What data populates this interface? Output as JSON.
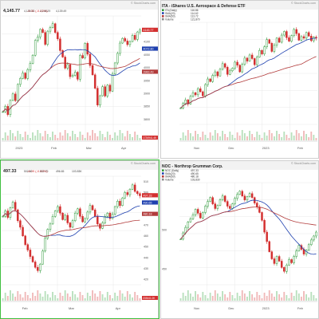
{
  "watermark": "© StockCharts.com",
  "colors": {
    "up": "#2e9a3a",
    "down": "#d32f2f",
    "ma_blue": "#1e40af",
    "ma_red": "#b23b3b",
    "accent_red": "#d32f2f",
    "grid": "#e8e8e8",
    "header_bg": "#f2f2f2",
    "selected_border": "#3fbf3f",
    "event_purple": "#a678c9"
  },
  "chart_data": [
    {
      "type": "candlestick",
      "panel": "top-left",
      "exchange": "",
      "symbol": "",
      "name": "",
      "last": "4,145.77",
      "change": "-9.30 (-0.22%)",
      "header_values": [
        "4,139.33",
        "4,148.29",
        "4,139.49"
      ],
      "legend": [],
      "price_tags": [
        {
          "text": "4145.77",
          "color": "#d32f2f",
          "value": 4145.77
        },
        {
          "text": "4072.80",
          "color": "#1e40af",
          "value": 4072.8
        },
        {
          "text": "3983.49",
          "color": "#b23b3b",
          "value": 3983.49
        }
      ],
      "y_ticks": [
        "4100",
        "4050",
        "4000",
        "3950",
        "3900",
        "3850",
        "3800"
      ],
      "volume_tag": "1726941.4K",
      "x_labels": [
        "2023",
        "Feb",
        "Mar",
        "Apr"
      ],
      "ylim": [
        3780,
        4200
      ],
      "series": {
        "close": [
          3829,
          3850,
          3818,
          3873,
          3898,
          3872,
          3935,
          3958,
          3979,
          3958,
          3992,
          4016,
          4048,
          4105,
          4119,
          4148,
          4136,
          4090,
          4141,
          4155,
          4170,
          4136,
          4111,
          4066,
          4041,
          3998,
          4012,
          3965,
          3970,
          3982,
          3955,
          4047,
          4037,
          4094,
          4052,
          4008,
          3972,
          3920,
          3855,
          3891,
          3926,
          3890,
          3932,
          3909,
          3975,
          4018,
          4055,
          4095,
          4113,
          4103,
          4089,
          4101,
          4125,
          4109,
          4138,
          4146
        ]
      }
    },
    {
      "type": "candlestick",
      "panel": "top-right",
      "exchange": "",
      "symbol": "ITA",
      "name": "iShares U.S. Aerospace & Defense ETF",
      "last": "",
      "change": "",
      "header_values": [],
      "legend": [
        {
          "label": "ITA (Daily)",
          "value": "116.86",
          "color": "#2e9a3a"
        },
        {
          "label": "SMA(20)",
          "value": "114.62",
          "color": "#1e40af"
        },
        {
          "label": "SMA(50)",
          "value": "113.72",
          "color": "#b23b3b"
        },
        {
          "label": "Volume",
          "value": "121,870",
          "color": "#888888"
        }
      ],
      "price_tags": [],
      "y_ticks": [],
      "volume_tag": "",
      "x_labels": [
        "Nov",
        "Dec",
        "2023",
        "Feb"
      ],
      "ylim": [
        100,
        120
      ],
      "series": {
        "close": [
          103.2,
          104.1,
          104.8,
          104.0,
          105.5,
          106.2,
          105.8,
          107.0,
          106.4,
          105.6,
          107.8,
          108.9,
          108.4,
          109.6,
          110.3,
          109.5,
          110.8,
          111.9,
          111.2,
          109.8,
          110.5,
          111.0,
          112.2,
          111.6,
          110.3,
          111.8,
          113.0,
          112.4,
          113.6,
          112.9,
          111.7,
          113.2,
          114.5,
          113.8,
          115.2,
          116.6,
          115.9,
          114.3,
          115.5,
          116.9,
          116.1,
          117.5,
          118.2,
          117.0,
          116.3,
          117.4,
          118.6,
          117.8,
          116.5,
          117.2,
          116.9,
          118.0,
          117.3,
          116.4,
          117.1,
          116.9
        ]
      }
    },
    {
      "type": "candlestick",
      "panel": "bottom-left",
      "exchange": "",
      "symbol": "",
      "name": "",
      "last": "497.33",
      "change": "-4.09 (-0.82%)",
      "header_values": [
        "502.80",
        "502.70",
        "496.65",
        "103.83K"
      ],
      "legend": [],
      "price_tags": [
        {
          "text": "497.33",
          "color": "#d32f2f",
          "value": 497.33
        },
        {
          "text": "490.65",
          "color": "#1e40af",
          "value": 490.65
        },
        {
          "text": "480.18",
          "color": "#b23b3b",
          "value": 480.18
        }
      ],
      "y_ticks": [
        "510",
        "500",
        "490",
        "480",
        "470",
        "460",
        "450",
        "440",
        "430",
        "420"
      ],
      "volume_tag": "203641.0K",
      "x_labels": [
        "Feb",
        "Mar",
        "Apr"
      ],
      "ylim": [
        415,
        515
      ],
      "series": {
        "close": [
          478,
          483,
          477,
          486,
          491,
          484,
          474,
          468,
          460,
          452,
          447,
          441,
          436,
          431,
          428,
          434,
          446,
          458,
          466,
          471,
          478,
          483,
          487,
          481,
          475,
          479,
          472,
          468,
          474,
          481,
          485,
          478,
          473,
          476,
          482,
          488,
          484,
          478,
          471,
          467,
          472,
          478,
          481,
          476,
          480,
          487,
          492,
          488,
          495,
          500,
          498,
          503,
          507,
          501,
          499,
          497
        ]
      }
    },
    {
      "type": "candlestick",
      "panel": "bottom-right",
      "exchange": "",
      "symbol": "NOC",
      "name": "Northrop Grumman Corp.",
      "last": "",
      "change": "",
      "header_values": [],
      "legend": [
        {
          "label": "NOC (Daily)",
          "value": "497.33",
          "color": "#2e9a3a"
        },
        {
          "label": "SMA(20)",
          "value": "490.65",
          "color": "#1e40af"
        },
        {
          "label": "SMA(50)",
          "value": "480.18",
          "color": "#b23b3b"
        },
        {
          "label": "Volume",
          "value": "103,830",
          "color": "#888888"
        }
      ],
      "price_tags": [],
      "y_ticks": [
        "500",
        "450"
      ],
      "volume_tag": "",
      "x_labels": [
        "Nov",
        "Dec",
        "2023",
        "Feb"
      ],
      "ylim": [
        430,
        560
      ],
      "series": {
        "close": [
          488,
          496,
          503,
          510,
          514,
          519,
          526,
          521,
          515,
          522,
          530,
          536,
          541,
          533,
          527,
          531,
          538,
          543,
          536,
          530,
          527,
          533,
          540,
          545,
          549,
          543,
          538,
          542,
          546,
          541,
          534,
          529,
          522,
          512,
          497,
          485,
          472,
          463,
          457,
          466,
          460,
          452,
          447,
          455,
          462,
          458,
          466,
          473,
          480,
          475,
          469,
          474,
          481,
          487,
          492,
          497
        ]
      }
    }
  ]
}
